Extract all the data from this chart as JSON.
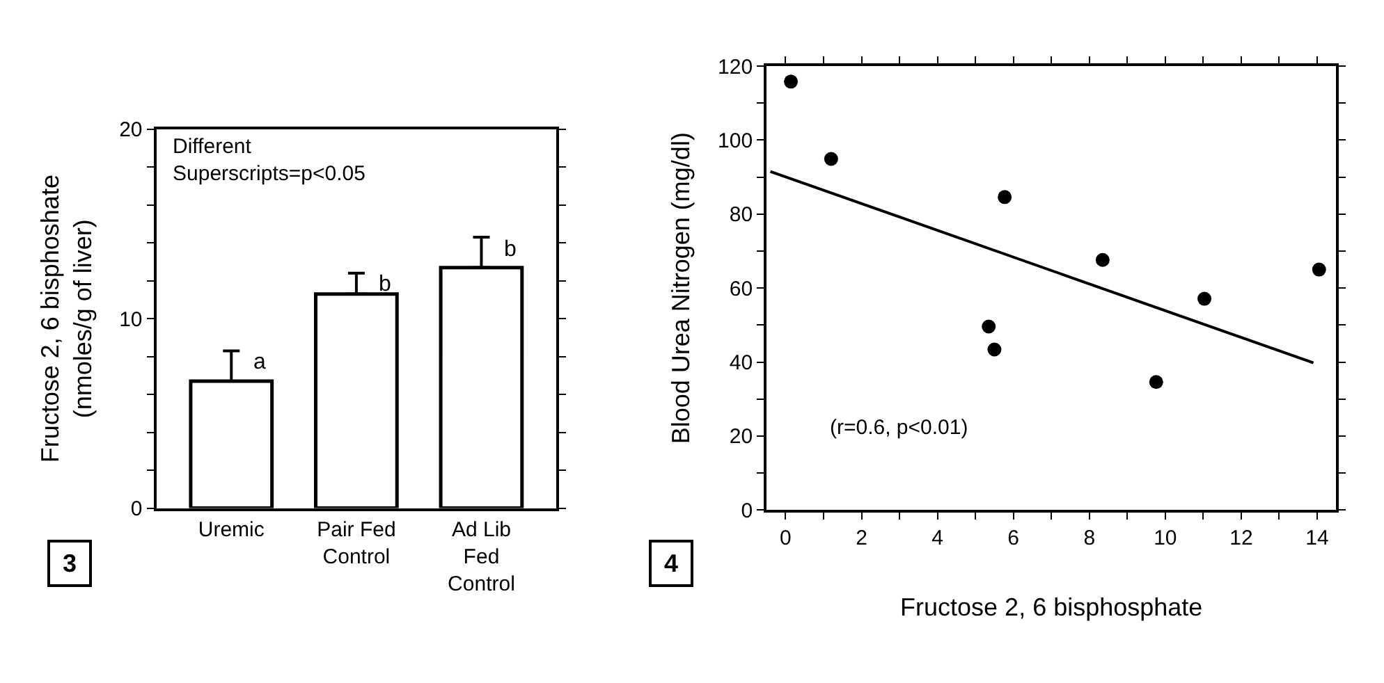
{
  "chart_data": [
    {
      "type": "bar",
      "ylabel": "Fructose 2, 6 bisphoshate (nmoles/g of liver)",
      "categories": [
        "Uremic",
        "Pair Fed Control",
        "Ad Lib Fed Control"
      ],
      "values": [
        6.7,
        11.3,
        12.7
      ],
      "errors": [
        [
          6.7,
          8.3
        ],
        [
          11.3,
          12.4
        ],
        [
          12.7,
          14.3
        ]
      ],
      "color": "#ffffff",
      "ylim": [
        0,
        20
      ],
      "yticks": [
        0,
        {
          "value": 2,
          "label": null
        },
        {
          "value": 4,
          "label": null
        },
        {
          "value": 6,
          "label": null
        },
        {
          "value": 8,
          "label": null
        },
        10,
        {
          "value": 12,
          "label": null
        },
        {
          "value": 14,
          "label": null
        },
        {
          "value": 16,
          "label": null
        },
        {
          "value": 18,
          "label": null
        },
        20
      ],
      "annotations": [
        "Different Superscripts=p<0.05",
        "3",
        "a",
        "b",
        "b"
      ]
    },
    {
      "type": "scatter",
      "xlabel": "Fructose 2, 6 bisphosphate",
      "ylabel": "Blood Urea Nitrogen (mg/dl)",
      "series": [
        {
          "type": "scatter",
          "color": "#000000",
          "marker": "circle",
          "x": [
            0.14,
            1.2,
            5.35,
            5.5,
            5.77,
            8.35,
            9.76,
            11.03,
            14.05
          ],
          "values": [
            115.8,
            94.9,
            49.6,
            43.4,
            84.6,
            67.6,
            34.6,
            57.1,
            65.0
          ]
        },
        {
          "type": "line",
          "color": "#000000",
          "marker": "none",
          "line_style": "solid",
          "x": [
            -0.4,
            13.9
          ],
          "values": [
            91.5,
            39.8
          ]
        }
      ],
      "xlim": [
        -0.5,
        14.5
      ],
      "xticks": [
        0,
        {
          "value": 1,
          "label": null
        },
        2,
        {
          "value": 3,
          "label": null
        },
        4,
        {
          "value": 5,
          "label": null
        },
        6,
        {
          "value": 7,
          "label": null
        },
        8,
        {
          "value": 9,
          "label": null
        },
        10,
        {
          "value": 11,
          "label": null
        },
        12,
        {
          "value": 13,
          "label": null
        },
        14
      ],
      "ylim": [
        0,
        120
      ],
      "yticks": [
        0,
        {
          "value": 10,
          "label": null
        },
        20,
        {
          "value": 30,
          "label": null
        },
        40,
        {
          "value": 50,
          "label": null
        },
        60,
        {
          "value": 70,
          "label": null
        },
        80,
        {
          "value": 90,
          "label": null
        },
        100,
        {
          "value": 110,
          "label": null
        },
        120
      ],
      "annotations": [
        "(r=0.6, p<0.01)",
        "4"
      ]
    }
  ]
}
